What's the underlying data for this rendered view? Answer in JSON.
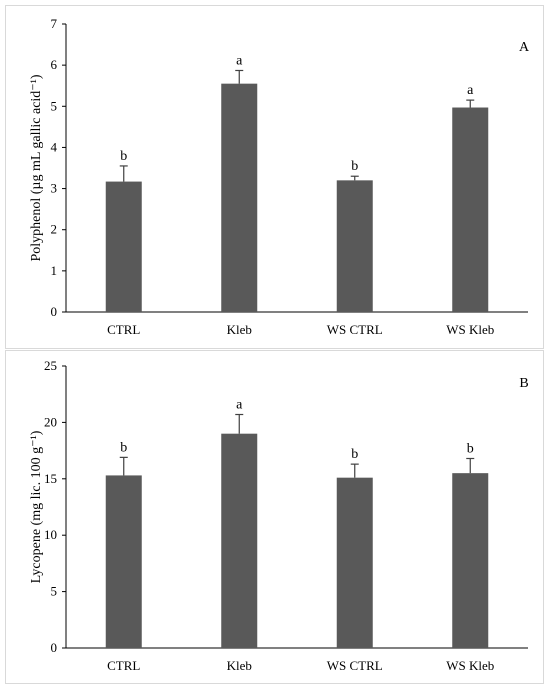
{
  "figure": {
    "panel_border_color": "#d9d9d9",
    "bar_color": "#595959",
    "axis_color": "#000000"
  },
  "chart_data": [
    {
      "type": "bar",
      "panel_label": "A",
      "ylabel": "Polyphenol (µg mL gallic acid⁻¹)",
      "categories": [
        "CTRL",
        "Kleb",
        "WS CTRL",
        "WS Kleb"
      ],
      "values": [
        3.17,
        5.55,
        3.2,
        4.97
      ],
      "errors": [
        0.38,
        0.32,
        0.1,
        0.18
      ],
      "significance_letters": [
        "b",
        "a",
        "b",
        "a"
      ],
      "ylim": [
        0,
        7
      ],
      "yticks": [
        0,
        1,
        2,
        3,
        4,
        5,
        6,
        7
      ],
      "grid": false
    },
    {
      "type": "bar",
      "panel_label": "B",
      "ylabel": "Lycopene (mg lic. 100 g⁻¹)",
      "categories": [
        "CTRL",
        "Kleb",
        "WS CTRL",
        "WS Kleb"
      ],
      "values": [
        15.3,
        19.0,
        15.1,
        15.5
      ],
      "errors": [
        1.6,
        1.7,
        1.2,
        1.3
      ],
      "significance_letters": [
        "b",
        "a",
        "b",
        "b"
      ],
      "ylim": [
        0,
        25
      ],
      "yticks": [
        0,
        5,
        10,
        15,
        20,
        25
      ],
      "grid": false
    }
  ]
}
